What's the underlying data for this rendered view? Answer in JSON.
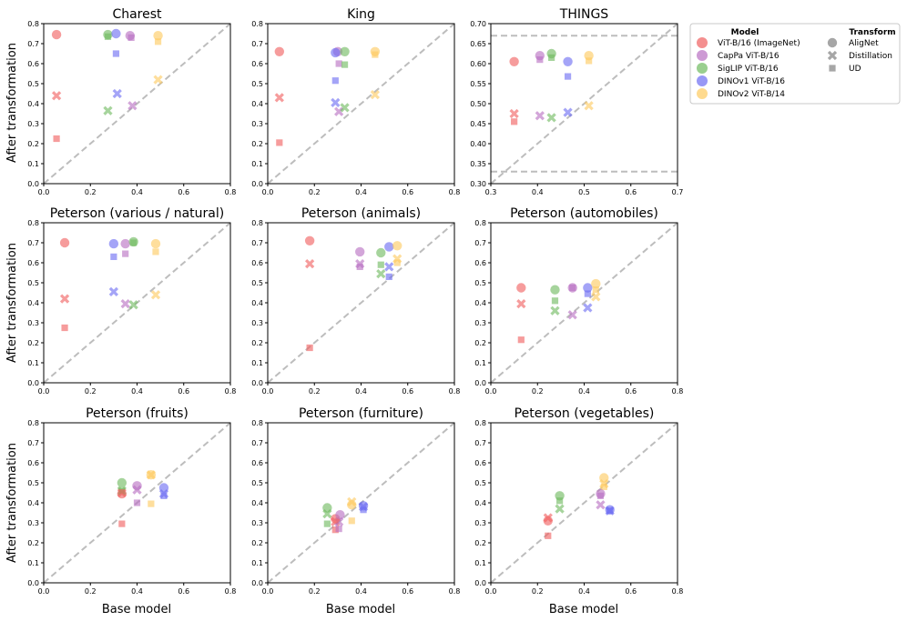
{
  "figure": {
    "ylabel": "After transformation",
    "xlabel": "Base model"
  },
  "legend": {
    "model_heading": "Model",
    "transform_heading": "Transform",
    "models": [
      {
        "name": "ViT-B/16 (ImageNet)",
        "color": "#f06060"
      },
      {
        "name": "CapPa ViT-B/16",
        "color": "#b86fc2"
      },
      {
        "name": "SigLIP ViT-B/16",
        "color": "#6fba5f"
      },
      {
        "name": "DINOv1 ViT-B/16",
        "color": "#6c6cf2"
      },
      {
        "name": "DINOv2 ViT-B/14",
        "color": "#fdca60"
      }
    ],
    "transforms": [
      {
        "name": "AligNet",
        "marker": "circle",
        "color": "#a6a6a6"
      },
      {
        "name": "Distillation",
        "marker": "x",
        "color": "#a6a6a6"
      },
      {
        "name": "UD",
        "marker": "square",
        "color": "#a6a6a6"
      }
    ]
  },
  "chart_data": [
    {
      "type": "scatter",
      "title": "Charest",
      "xlabel": "",
      "ylabel": "After transformation",
      "xlim": [
        0,
        0.8
      ],
      "ylim": [
        0,
        0.8
      ],
      "xticks": [
        "0.0",
        "0.2",
        "0.4",
        "0.6",
        "0.8"
      ],
      "yticks": [
        "0.0",
        "0.1",
        "0.2",
        "0.3",
        "0.4",
        "0.5",
        "0.6",
        "0.7",
        "0.8"
      ],
      "series": [
        {
          "model": "ViT-B/16 (ImageNet)",
          "AligNet": [
            0.055,
            0.745
          ],
          "Distillation": [
            0.055,
            0.44
          ],
          "UD": [
            0.055,
            0.225
          ]
        },
        {
          "model": "CapPa ViT-B/16",
          "AligNet": [
            0.37,
            0.74
          ],
          "Distillation": [
            0.38,
            0.39
          ],
          "UD": [
            0.375,
            0.73
          ]
        },
        {
          "model": "SigLIP ViT-B/16",
          "AligNet": [
            0.275,
            0.745
          ],
          "Distillation": [
            0.275,
            0.365
          ],
          "UD": [
            0.275,
            0.735
          ]
        },
        {
          "model": "DINOv1 ViT-B/16",
          "AligNet": [
            0.31,
            0.75
          ],
          "Distillation": [
            0.315,
            0.45
          ],
          "UD": [
            0.31,
            0.65
          ]
        },
        {
          "model": "DINOv2 ViT-B/14",
          "AligNet": [
            0.49,
            0.74
          ],
          "Distillation": [
            0.49,
            0.52
          ],
          "UD": [
            0.49,
            0.71
          ]
        }
      ]
    },
    {
      "type": "scatter",
      "title": "King",
      "xlabel": "",
      "ylabel": "",
      "xlim": [
        0,
        0.8
      ],
      "ylim": [
        0,
        0.8
      ],
      "xticks": [
        "0.0",
        "0.2",
        "0.4",
        "0.6",
        "0.8"
      ],
      "yticks": [
        "0.0",
        "0.1",
        "0.2",
        "0.3",
        "0.4",
        "0.5",
        "0.6",
        "0.7",
        "0.8"
      ],
      "series": [
        {
          "model": "ViT-B/16 (ImageNet)",
          "AligNet": [
            0.05,
            0.66
          ],
          "Distillation": [
            0.05,
            0.43
          ],
          "UD": [
            0.05,
            0.205
          ]
        },
        {
          "model": "CapPa ViT-B/16",
          "AligNet": [
            0.3,
            0.66
          ],
          "Distillation": [
            0.305,
            0.36
          ],
          "UD": [
            0.305,
            0.6
          ]
        },
        {
          "model": "SigLIP ViT-B/16",
          "AligNet": [
            0.33,
            0.66
          ],
          "Distillation": [
            0.33,
            0.38
          ],
          "UD": [
            0.33,
            0.595
          ]
        },
        {
          "model": "DINOv1 ViT-B/16",
          "AligNet": [
            0.29,
            0.655
          ],
          "Distillation": [
            0.29,
            0.405
          ],
          "UD": [
            0.29,
            0.515
          ]
        },
        {
          "model": "DINOv2 ViT-B/14",
          "AligNet": [
            0.46,
            0.66
          ],
          "Distillation": [
            0.46,
            0.445
          ],
          "UD": [
            0.46,
            0.645
          ]
        }
      ]
    },
    {
      "type": "scatter",
      "title": "THINGS",
      "xlabel": "",
      "ylabel": "",
      "xlim": [
        0.3,
        0.7
      ],
      "ylim": [
        0.3,
        0.7
      ],
      "xticks": [
        "0.3",
        "0.4",
        "0.5",
        "0.6",
        "0.7"
      ],
      "yticks": [
        "0.30",
        "0.35",
        "0.40",
        "0.45",
        "0.50",
        "0.55",
        "0.60",
        "0.65",
        "0.70"
      ],
      "hlines": [
        0.67,
        0.33
      ],
      "series": [
        {
          "model": "ViT-B/16 (ImageNet)",
          "AligNet": [
            0.35,
            0.605
          ],
          "Distillation": [
            0.35,
            0.475
          ],
          "UD": [
            0.35,
            0.455
          ]
        },
        {
          "model": "CapPa ViT-B/16",
          "AligNet": [
            0.405,
            0.62
          ],
          "Distillation": [
            0.405,
            0.47
          ],
          "UD": [
            0.405,
            0.61
          ]
        },
        {
          "model": "SigLIP ViT-B/16",
          "AligNet": [
            0.43,
            0.625
          ],
          "Distillation": [
            0.43,
            0.465
          ],
          "UD": [
            0.43,
            0.615
          ]
        },
        {
          "model": "DINOv1 ViT-B/16",
          "AligNet": [
            0.465,
            0.605
          ],
          "Distillation": [
            0.465,
            0.478
          ],
          "UD": [
            0.465,
            0.568
          ]
        },
        {
          "model": "DINOv2 ViT-B/14",
          "AligNet": [
            0.51,
            0.62
          ],
          "Distillation": [
            0.51,
            0.495
          ],
          "UD": [
            0.51,
            0.607
          ]
        }
      ]
    },
    {
      "type": "scatter",
      "title": "Peterson (various / natural)",
      "xlabel": "",
      "ylabel": "After transformation",
      "xlim": [
        0,
        0.8
      ],
      "ylim": [
        0,
        0.8
      ],
      "xticks": [
        "0.0",
        "0.2",
        "0.4",
        "0.6",
        "0.8"
      ],
      "yticks": [
        "0.0",
        "0.1",
        "0.2",
        "0.3",
        "0.4",
        "0.5",
        "0.6",
        "0.7",
        "0.8"
      ],
      "series": [
        {
          "model": "ViT-B/16 (ImageNet)",
          "AligNet": [
            0.09,
            0.7
          ],
          "Distillation": [
            0.09,
            0.42
          ],
          "UD": [
            0.09,
            0.275
          ]
        },
        {
          "model": "CapPa ViT-B/16",
          "AligNet": [
            0.35,
            0.695
          ],
          "Distillation": [
            0.35,
            0.395
          ],
          "UD": [
            0.35,
            0.645
          ]
        },
        {
          "model": "SigLIP ViT-B/16",
          "AligNet": [
            0.385,
            0.705
          ],
          "Distillation": [
            0.385,
            0.39
          ],
          "UD": [
            0.385,
            0.7
          ]
        },
        {
          "model": "DINOv1 ViT-B/16",
          "AligNet": [
            0.3,
            0.695
          ],
          "Distillation": [
            0.3,
            0.455
          ],
          "UD": [
            0.3,
            0.63
          ]
        },
        {
          "model": "DINOv2 ViT-B/14",
          "AligNet": [
            0.48,
            0.695
          ],
          "Distillation": [
            0.48,
            0.44
          ],
          "UD": [
            0.48,
            0.655
          ]
        }
      ]
    },
    {
      "type": "scatter",
      "title": "Peterson (animals)",
      "xlabel": "",
      "ylabel": "",
      "xlim": [
        0,
        0.8
      ],
      "ylim": [
        0,
        0.8
      ],
      "xticks": [
        "0.0",
        "0.2",
        "0.4",
        "0.6",
        "0.8"
      ],
      "yticks": [
        "0.0",
        "0.1",
        "0.2",
        "0.3",
        "0.4",
        "0.5",
        "0.6",
        "0.7",
        "0.8"
      ],
      "series": [
        {
          "model": "ViT-B/16 (ImageNet)",
          "AligNet": [
            0.18,
            0.71
          ],
          "Distillation": [
            0.18,
            0.595
          ],
          "UD": [
            0.18,
            0.175
          ]
        },
        {
          "model": "CapPa ViT-B/16",
          "AligNet": [
            0.395,
            0.655
          ],
          "Distillation": [
            0.395,
            0.595
          ],
          "UD": [
            0.395,
            0.58
          ]
        },
        {
          "model": "SigLIP ViT-B/16",
          "AligNet": [
            0.485,
            0.65
          ],
          "Distillation": [
            0.485,
            0.545
          ],
          "UD": [
            0.485,
            0.59
          ]
        },
        {
          "model": "DINOv1 ViT-B/16",
          "AligNet": [
            0.52,
            0.68
          ],
          "Distillation": [
            0.52,
            0.58
          ],
          "UD": [
            0.52,
            0.53
          ]
        },
        {
          "model": "DINOv2 ViT-B/14",
          "AligNet": [
            0.555,
            0.685
          ],
          "Distillation": [
            0.555,
            0.62
          ],
          "UD": [
            0.555,
            0.6
          ]
        }
      ]
    },
    {
      "type": "scatter",
      "title": "Peterson (automobiles)",
      "xlabel": "",
      "ylabel": "",
      "xlim": [
        0,
        0.8
      ],
      "ylim": [
        0,
        0.8
      ],
      "xticks": [
        "0.0",
        "0.2",
        "0.4",
        "0.6",
        "0.8"
      ],
      "yticks": [
        "0.0",
        "0.1",
        "0.2",
        "0.3",
        "0.4",
        "0.5",
        "0.6",
        "0.7",
        "0.8"
      ],
      "series": [
        {
          "model": "ViT-B/16 (ImageNet)",
          "AligNet": [
            0.13,
            0.475
          ],
          "Distillation": [
            0.13,
            0.395
          ],
          "UD": [
            0.13,
            0.215
          ]
        },
        {
          "model": "CapPa ViT-B/16",
          "AligNet": [
            0.35,
            0.475
          ],
          "Distillation": [
            0.35,
            0.34
          ],
          "UD": [
            0.35,
            0.475
          ]
        },
        {
          "model": "SigLIP ViT-B/16",
          "AligNet": [
            0.275,
            0.465
          ],
          "Distillation": [
            0.275,
            0.36
          ],
          "UD": [
            0.275,
            0.41
          ]
        },
        {
          "model": "DINOv1 ViT-B/16",
          "AligNet": [
            0.415,
            0.475
          ],
          "Distillation": [
            0.415,
            0.375
          ],
          "UD": [
            0.415,
            0.445
          ]
        },
        {
          "model": "DINOv2 ViT-B/14",
          "AligNet": [
            0.45,
            0.495
          ],
          "Distillation": [
            0.45,
            0.43
          ],
          "UD": [
            0.45,
            0.465
          ]
        }
      ]
    },
    {
      "type": "scatter",
      "title": "Peterson (fruits)",
      "xlabel": "Base model",
      "ylabel": "After transformation",
      "xlim": [
        0,
        0.8
      ],
      "ylim": [
        0,
        0.8
      ],
      "xticks": [
        "0.0",
        "0.2",
        "0.4",
        "0.6",
        "0.8"
      ],
      "yticks": [
        "0.0",
        "0.1",
        "0.2",
        "0.3",
        "0.4",
        "0.5",
        "0.6",
        "0.7",
        "0.8"
      ],
      "series": [
        {
          "model": "ViT-B/16 (ImageNet)",
          "AligNet": [
            0.335,
            0.445
          ],
          "Distillation": [
            0.335,
            0.45
          ],
          "UD": [
            0.335,
            0.295
          ]
        },
        {
          "model": "CapPa ViT-B/16",
          "AligNet": [
            0.4,
            0.485
          ],
          "Distillation": [
            0.4,
            0.465
          ],
          "UD": [
            0.4,
            0.4
          ]
        },
        {
          "model": "SigLIP ViT-B/16",
          "AligNet": [
            0.335,
            0.5
          ],
          "Distillation": [
            0.335,
            0.46
          ],
          "UD": [
            0.335,
            0.46
          ]
        },
        {
          "model": "DINOv1 ViT-B/16",
          "AligNet": [
            0.515,
            0.475
          ],
          "Distillation": [
            0.515,
            0.445
          ],
          "UD": [
            0.515,
            0.435
          ]
        },
        {
          "model": "DINOv2 ViT-B/14",
          "AligNet": [
            0.46,
            0.54
          ],
          "Distillation": [
            0.46,
            0.54
          ],
          "UD": [
            0.46,
            0.395
          ]
        }
      ]
    },
    {
      "type": "scatter",
      "title": "Peterson (furniture)",
      "xlabel": "Base model",
      "ylabel": "",
      "xlim": [
        0,
        0.8
      ],
      "ylim": [
        0,
        0.8
      ],
      "xticks": [
        "0.0",
        "0.2",
        "0.4",
        "0.6",
        "0.8"
      ],
      "yticks": [
        "0.0",
        "0.1",
        "0.2",
        "0.3",
        "0.4",
        "0.5",
        "0.6",
        "0.7",
        "0.8"
      ],
      "series": [
        {
          "model": "ViT-B/16 (ImageNet)",
          "AligNet": [
            0.29,
            0.32
          ],
          "Distillation": [
            0.29,
            0.305
          ],
          "UD": [
            0.29,
            0.265
          ]
        },
        {
          "model": "CapPa ViT-B/16",
          "AligNet": [
            0.31,
            0.34
          ],
          "Distillation": [
            0.305,
            0.305
          ],
          "UD": [
            0.305,
            0.27
          ]
        },
        {
          "model": "SigLIP ViT-B/16",
          "AligNet": [
            0.255,
            0.375
          ],
          "Distillation": [
            0.255,
            0.345
          ],
          "UD": [
            0.255,
            0.295
          ]
        },
        {
          "model": "DINOv1 ViT-B/16",
          "AligNet": [
            0.41,
            0.385
          ],
          "Distillation": [
            0.41,
            0.38
          ],
          "UD": [
            0.41,
            0.365
          ]
        },
        {
          "model": "DINOv2 ViT-B/14",
          "AligNet": [
            0.36,
            0.39
          ],
          "Distillation": [
            0.36,
            0.405
          ],
          "UD": [
            0.36,
            0.31
          ]
        }
      ]
    },
    {
      "type": "scatter",
      "title": "Peterson (vegetables)",
      "xlabel": "Base model",
      "ylabel": "",
      "xlim": [
        0,
        0.8
      ],
      "ylim": [
        0,
        0.8
      ],
      "xticks": [
        "0.0",
        "0.2",
        "0.4",
        "0.6",
        "0.8"
      ],
      "yticks": [
        "0.0",
        "0.1",
        "0.2",
        "0.3",
        "0.4",
        "0.5",
        "0.6",
        "0.7",
        "0.8"
      ],
      "series": [
        {
          "model": "ViT-B/16 (ImageNet)",
          "AligNet": [
            0.245,
            0.31
          ],
          "Distillation": [
            0.245,
            0.325
          ],
          "UD": [
            0.245,
            0.235
          ]
        },
        {
          "model": "CapPa ViT-B/16",
          "AligNet": [
            0.47,
            0.445
          ],
          "Distillation": [
            0.47,
            0.39
          ],
          "UD": [
            0.47,
            0.435
          ]
        },
        {
          "model": "SigLIP ViT-B/16",
          "AligNet": [
            0.295,
            0.435
          ],
          "Distillation": [
            0.295,
            0.37
          ],
          "UD": [
            0.295,
            0.41
          ]
        },
        {
          "model": "DINOv1 ViT-B/16",
          "AligNet": [
            0.51,
            0.365
          ],
          "Distillation": [
            0.51,
            0.36
          ],
          "UD": [
            0.51,
            0.36
          ]
        },
        {
          "model": "DINOv2 ViT-B/14",
          "AligNet": [
            0.485,
            0.525
          ],
          "Distillation": [
            0.485,
            0.495
          ],
          "UD": [
            0.485,
            0.48
          ]
        }
      ]
    }
  ]
}
